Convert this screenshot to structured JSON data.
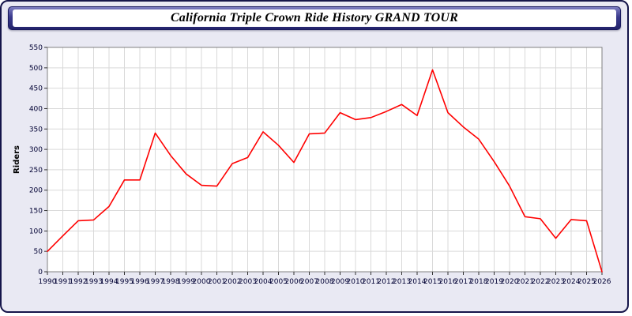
{
  "header": {
    "title": "California Triple Crown Ride History GRAND TOUR"
  },
  "chart_data": {
    "type": "line",
    "title": "California Triple Crown Ride History GRAND TOUR",
    "xlabel": "",
    "ylabel": "Riders",
    "ylim": [
      0,
      550
    ],
    "ytick_step": 50,
    "grid": true,
    "legend": "none",
    "line_color": "#ff0000",
    "plot_bg": "#ffffff",
    "grid_color": "#d9d9d9",
    "axis_text_color": "#000033",
    "x": [
      1990,
      1991,
      1992,
      1993,
      1994,
      1995,
      1996,
      1997,
      1998,
      1999,
      2000,
      2001,
      2002,
      2003,
      2004,
      2005,
      2006,
      2007,
      2008,
      2009,
      2010,
      2011,
      2012,
      2013,
      2014,
      2015,
      2016,
      2017,
      2018,
      2019,
      2020,
      2021,
      2022,
      2023,
      2024,
      2025,
      2026
    ],
    "values": [
      50,
      88,
      125,
      127,
      160,
      225,
      225,
      340,
      285,
      240,
      212,
      210,
      265,
      280,
      343,
      310,
      268,
      338,
      340,
      390,
      373,
      378,
      393,
      410,
      383,
      495,
      390,
      355,
      325,
      270,
      210,
      135,
      130,
      82,
      128,
      125,
      0
    ]
  }
}
